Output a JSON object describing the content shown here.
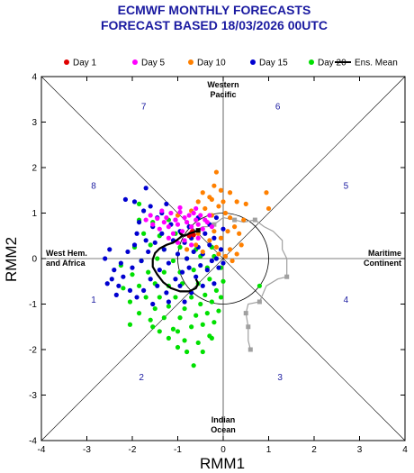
{
  "chart_data": {
    "type": "scatter",
    "title": "ECMWF MONTHLY FORECASTS",
    "subtitle": "FORECAST  BASED 18/03/2026 00UTC",
    "xlabel": "RMM1",
    "ylabel": "RMM2",
    "xlim": [
      -4,
      4
    ],
    "ylim": [
      -4,
      4
    ],
    "xticks": [
      "-4",
      "-3",
      "-2",
      "-1",
      "0",
      "1",
      "2",
      "3",
      "4"
    ],
    "yticks": [
      "-4",
      "-3",
      "-2",
      "-1",
      "0",
      "1",
      "2",
      "3",
      "4"
    ],
    "legend_position": "top",
    "legend": [
      {
        "label": "Day 1",
        "color": "#e00000",
        "kind": "dot"
      },
      {
        "label": "Day 5",
        "color": "#ff00ff",
        "kind": "dot"
      },
      {
        "label": "Day 10",
        "color": "#ff8000",
        "kind": "dot"
      },
      {
        "label": "Day 15",
        "color": "#0000d0",
        "kind": "dot"
      },
      {
        "label": "Day 20",
        "color": "#00e000",
        "kind": "dot"
      },
      {
        "label": "Ens. Mean",
        "color": "#000000",
        "kind": "line"
      }
    ],
    "regions": {
      "top": [
        "Western",
        "Pacific"
      ],
      "bottom": [
        "Indian",
        "Ocean"
      ],
      "left": [
        "West Hem.",
        "and Africa"
      ],
      "right": [
        "Maritime",
        "Continent"
      ]
    },
    "phases": [
      {
        "label": "1",
        "x": -2.85,
        "y": -0.9
      },
      {
        "label": "2",
        "x": -1.8,
        "y": -2.6
      },
      {
        "label": "3",
        "x": 1.25,
        "y": -2.6
      },
      {
        "label": "4",
        "x": 2.7,
        "y": -0.9
      },
      {
        "label": "5",
        "x": 2.7,
        "y": 1.6
      },
      {
        "label": "6",
        "x": 1.2,
        "y": 3.35
      },
      {
        "label": "7",
        "x": -1.75,
        "y": 3.35
      },
      {
        "label": "8",
        "x": -2.85,
        "y": 1.6
      }
    ],
    "observed_analysis": [
      [
        0.6,
        -2.0
      ],
      [
        0.55,
        -1.8
      ],
      [
        0.55,
        -1.5
      ],
      [
        0.5,
        -1.2
      ],
      [
        0.55,
        -1.0
      ],
      [
        0.8,
        -0.95
      ],
      [
        0.95,
        -0.6
      ],
      [
        1.2,
        -0.45
      ],
      [
        1.4,
        -0.4
      ],
      [
        1.4,
        0.0
      ],
      [
        1.3,
        0.2
      ],
      [
        1.3,
        0.4
      ],
      [
        1.1,
        0.6
      ],
      [
        0.9,
        0.7
      ],
      [
        0.7,
        0.85
      ],
      [
        0.45,
        0.8
      ],
      [
        0.25,
        0.85
      ],
      [
        0.0,
        0.9
      ],
      [
        -0.2,
        0.75
      ],
      [
        -0.35,
        0.7
      ],
      [
        -0.45,
        0.7
      ],
      [
        -0.55,
        0.65
      ]
    ],
    "observed_markers": [
      [
        0.6,
        -2.0
      ],
      [
        0.55,
        -1.5
      ],
      [
        0.5,
        -1.2
      ],
      [
        0.8,
        -0.95
      ],
      [
        1.4,
        -0.4
      ],
      [
        0.7,
        0.85
      ],
      [
        0.25,
        0.85
      ],
      [
        -0.2,
        0.75
      ]
    ],
    "ensemble_mean": [
      [
        -0.55,
        0.62
      ],
      [
        -0.65,
        0.58
      ],
      [
        -0.75,
        0.55
      ],
      [
        -0.85,
        0.5
      ],
      [
        -0.95,
        0.55
      ],
      [
        -0.9,
        0.5
      ],
      [
        -1.0,
        0.42
      ],
      [
        -1.1,
        0.35
      ],
      [
        -1.25,
        0.3
      ],
      [
        -1.4,
        0.22
      ],
      [
        -1.5,
        0.12
      ],
      [
        -1.55,
        -0.02
      ],
      [
        -1.55,
        -0.18
      ],
      [
        -1.45,
        -0.35
      ],
      [
        -1.32,
        -0.52
      ],
      [
        -1.15,
        -0.65
      ],
      [
        -0.95,
        -0.72
      ],
      [
        -0.75,
        -0.72
      ],
      [
        -0.6,
        -0.65
      ],
      [
        -0.55,
        -0.55
      ],
      [
        -0.6,
        -0.45
      ]
    ],
    "series": [
      {
        "name": "Day 1",
        "color": "#e00000",
        "points": [
          [
            -0.72,
            0.55
          ],
          [
            -0.68,
            0.6
          ],
          [
            -0.75,
            0.5
          ],
          [
            -0.65,
            0.52
          ]
        ]
      },
      {
        "name": "Day 5",
        "color": "#ff00ff",
        "points": [
          [
            -1.7,
            0.85
          ],
          [
            -1.6,
            0.95
          ],
          [
            -1.55,
            0.75
          ],
          [
            -1.45,
            0.88
          ],
          [
            -1.4,
            0.65
          ],
          [
            -1.35,
            1.05
          ],
          [
            -1.3,
            0.8
          ],
          [
            -1.25,
            0.9
          ],
          [
            -1.2,
            0.7
          ],
          [
            -1.15,
            1.0
          ],
          [
            -1.1,
            0.55
          ],
          [
            -1.05,
            0.85
          ],
          [
            -1.0,
            0.75
          ],
          [
            -0.95,
            1.02
          ],
          [
            -0.9,
            0.6
          ],
          [
            -0.85,
            0.9
          ],
          [
            -0.8,
            0.8
          ],
          [
            -0.75,
            0.95
          ],
          [
            -0.7,
            0.7
          ],
          [
            -0.65,
            1.0
          ],
          [
            -0.6,
            0.85
          ],
          [
            -0.55,
            0.75
          ],
          [
            -0.5,
            0.95
          ],
          [
            -0.45,
            0.65
          ],
          [
            -0.4,
            0.85
          ],
          [
            -0.35,
            0.8
          ],
          [
            -0.3,
            0.95
          ],
          [
            -0.25,
            0.7
          ],
          [
            -1.0,
            0.35
          ],
          [
            -0.85,
            0.4
          ],
          [
            -0.7,
            0.3
          ],
          [
            -0.55,
            0.45
          ],
          [
            -1.2,
            0.45
          ],
          [
            -0.95,
            1.12
          ],
          [
            -0.6,
            1.1
          ]
        ]
      },
      {
        "name": "Day 10",
        "color": "#ff8000",
        "points": [
          [
            -0.15,
            1.9
          ],
          [
            -0.2,
            1.6
          ],
          [
            -0.05,
            1.5
          ],
          [
            0.15,
            1.45
          ],
          [
            -0.3,
            1.35
          ],
          [
            -0.45,
            1.45
          ],
          [
            0.3,
            1.25
          ],
          [
            0.5,
            1.2
          ],
          [
            0.95,
            1.45
          ],
          [
            1.0,
            1.1
          ],
          [
            -0.1,
            1.15
          ],
          [
            0.05,
            1.0
          ],
          [
            0.15,
            0.9
          ],
          [
            -0.25,
            0.95
          ],
          [
            -0.4,
            1.1
          ],
          [
            -0.55,
            1.25
          ],
          [
            -0.7,
            1.05
          ],
          [
            0.25,
            0.7
          ],
          [
            0.35,
            0.55
          ],
          [
            0.4,
            0.3
          ],
          [
            0.3,
            0.1
          ],
          [
            0.15,
            0.2
          ],
          [
            -0.05,
            0.45
          ],
          [
            -0.15,
            0.25
          ],
          [
            -0.3,
            0.4
          ],
          [
            -0.45,
            0.15
          ],
          [
            0.1,
            0.6
          ],
          [
            -0.2,
            0.6
          ],
          [
            0.2,
            -0.05
          ],
          [
            0.05,
            0.05
          ],
          [
            -0.1,
            0.1
          ],
          [
            0.45,
            0.85
          ],
          [
            -0.6,
            0.3
          ],
          [
            -0.8,
            0.2
          ],
          [
            -0.55,
            0.55
          ],
          [
            -1.0,
            0.95
          ],
          [
            -0.25,
            1.3
          ],
          [
            0.0,
            1.25
          ]
        ]
      },
      {
        "name": "Day 15",
        "color": "#0000d0",
        "points": [
          [
            -2.55,
            -0.55
          ],
          [
            -2.45,
            -0.45
          ],
          [
            -2.4,
            -0.25
          ],
          [
            -2.3,
            -0.6
          ],
          [
            -2.25,
            -0.1
          ],
          [
            -2.2,
            -0.4
          ],
          [
            -2.1,
            0.15
          ],
          [
            -2.05,
            -0.7
          ],
          [
            -2.0,
            -0.2
          ],
          [
            -1.95,
            0.3
          ],
          [
            -1.9,
            0.55
          ],
          [
            -1.85,
            0.8
          ],
          [
            -1.8,
            -0.05
          ],
          [
            -1.75,
            1.05
          ],
          [
            -1.7,
            0.4
          ],
          [
            -1.65,
            0.15
          ],
          [
            -1.6,
            -0.45
          ],
          [
            -1.55,
            0.7
          ],
          [
            -1.5,
            0.35
          ],
          [
            -1.45,
            0.9
          ],
          [
            -1.4,
            -0.25
          ],
          [
            -1.35,
            0.55
          ],
          [
            -1.3,
            0.2
          ],
          [
            -1.25,
            1.2
          ],
          [
            -1.2,
            -0.1
          ],
          [
            -1.15,
            0.75
          ],
          [
            -1.1,
            0.4
          ],
          [
            -1.05,
            -0.45
          ],
          [
            -1.0,
            0.1
          ],
          [
            -0.95,
            0.6
          ],
          [
            -0.9,
            -0.3
          ],
          [
            -0.85,
            0.35
          ],
          [
            -0.8,
            0.0
          ],
          [
            -0.75,
            -0.2
          ],
          [
            -0.7,
            0.45
          ],
          [
            -0.65,
            0.15
          ],
          [
            -0.6,
            -0.4
          ],
          [
            -0.55,
            0.25
          ],
          [
            -0.5,
            -0.15
          ],
          [
            -0.45,
            0.1
          ],
          [
            -0.4,
            0.55
          ],
          [
            -0.35,
            -0.25
          ],
          [
            -0.3,
            0.3
          ],
          [
            -0.25,
            -0.05
          ],
          [
            -0.2,
            0.45
          ],
          [
            -0.15,
            0.0
          ],
          [
            -0.1,
            -0.2
          ],
          [
            -0.05,
            0.2
          ],
          [
            0.0,
            -0.1
          ],
          [
            -2.15,
            1.3
          ],
          [
            -1.95,
            1.25
          ],
          [
            -1.7,
            1.55
          ],
          [
            -1.6,
            1.15
          ],
          [
            -0.15,
            0.9
          ],
          [
            0.0,
            0.65
          ],
          [
            -0.55,
            0.9
          ],
          [
            -0.3,
            0.75
          ],
          [
            -1.35,
            1.0
          ],
          [
            -1.05,
            0.85
          ],
          [
            -0.75,
            0.7
          ],
          [
            -2.6,
            0.0
          ],
          [
            -2.5,
            0.2
          ],
          [
            -1.9,
            -0.85
          ],
          [
            -1.75,
            -0.7
          ],
          [
            -1.45,
            -0.6
          ],
          [
            -1.25,
            -0.75
          ],
          [
            -0.95,
            -0.6
          ],
          [
            -0.7,
            -0.75
          ],
          [
            -0.45,
            -0.6
          ],
          [
            -0.2,
            -0.55
          ],
          [
            -2.35,
            -0.8
          ],
          [
            -1.55,
            -1.0
          ],
          [
            -1.2,
            -0.95
          ],
          [
            -0.85,
            -0.95
          ]
        ]
      },
      {
        "name": "Day 20",
        "color": "#00e000",
        "points": [
          [
            -0.65,
            -2.35
          ],
          [
            -0.8,
            -2.05
          ],
          [
            -0.45,
            -2.05
          ],
          [
            -1.0,
            -1.95
          ],
          [
            -0.55,
            -1.85
          ],
          [
            -1.2,
            -1.75
          ],
          [
            -0.85,
            -1.8
          ],
          [
            -0.3,
            -1.7
          ],
          [
            -1.4,
            -1.6
          ],
          [
            -1.1,
            -1.55
          ],
          [
            -0.7,
            -1.5
          ],
          [
            -0.45,
            -1.45
          ],
          [
            -0.2,
            -1.4
          ],
          [
            -1.6,
            -1.35
          ],
          [
            -1.3,
            -1.3
          ],
          [
            -0.95,
            -1.3
          ],
          [
            -0.6,
            -1.25
          ],
          [
            -0.35,
            -1.2
          ],
          [
            -0.1,
            -1.15
          ],
          [
            -1.85,
            -1.2
          ],
          [
            -1.5,
            -1.1
          ],
          [
            -1.2,
            -1.05
          ],
          [
            -0.85,
            -1.1
          ],
          [
            -0.5,
            -1.0
          ],
          [
            -0.25,
            -0.95
          ],
          [
            -0.05,
            -0.85
          ],
          [
            -2.05,
            -0.95
          ],
          [
            -1.7,
            -0.85
          ],
          [
            -1.4,
            -0.85
          ],
          [
            -1.05,
            -0.85
          ],
          [
            -0.7,
            -0.85
          ],
          [
            -0.4,
            -0.8
          ],
          [
            -0.15,
            -0.7
          ],
          [
            -2.2,
            -0.65
          ],
          [
            -1.85,
            -0.6
          ],
          [
            -1.5,
            -0.55
          ],
          [
            -1.2,
            -0.6
          ],
          [
            -0.9,
            -0.55
          ],
          [
            -0.55,
            -0.55
          ],
          [
            -0.3,
            -0.45
          ],
          [
            0.0,
            -0.5
          ],
          [
            -2.0,
            -0.35
          ],
          [
            -1.65,
            -0.3
          ],
          [
            -1.3,
            -0.3
          ],
          [
            -0.95,
            -0.3
          ],
          [
            -0.65,
            -0.25
          ],
          [
            -0.35,
            -0.2
          ],
          [
            -0.05,
            -0.2
          ],
          [
            -1.8,
            -0.05
          ],
          [
            -1.45,
            0.0
          ],
          [
            -1.1,
            -0.05
          ],
          [
            -0.8,
            0.0
          ],
          [
            -0.5,
            0.05
          ],
          [
            -0.2,
            0.05
          ],
          [
            -1.95,
            0.25
          ],
          [
            -1.6,
            0.3
          ],
          [
            -1.3,
            0.2
          ],
          [
            -0.95,
            0.25
          ],
          [
            -0.6,
            0.2
          ],
          [
            -0.25,
            0.25
          ],
          [
            -1.75,
            0.55
          ],
          [
            -1.4,
            0.5
          ],
          [
            -1.05,
            0.55
          ],
          [
            -0.7,
            0.45
          ],
          [
            -1.85,
            0.85
          ],
          [
            -1.55,
            0.8
          ],
          [
            -1.2,
            0.85
          ],
          [
            -1.85,
            1.2
          ],
          [
            -2.05,
            -1.45
          ],
          [
            0.8,
            -0.6
          ],
          [
            -2.25,
            -0.15
          ],
          [
            -1.0,
            -1.6
          ],
          [
            -0.25,
            -1.75
          ],
          [
            -1.55,
            -1.5
          ]
        ]
      }
    ]
  }
}
